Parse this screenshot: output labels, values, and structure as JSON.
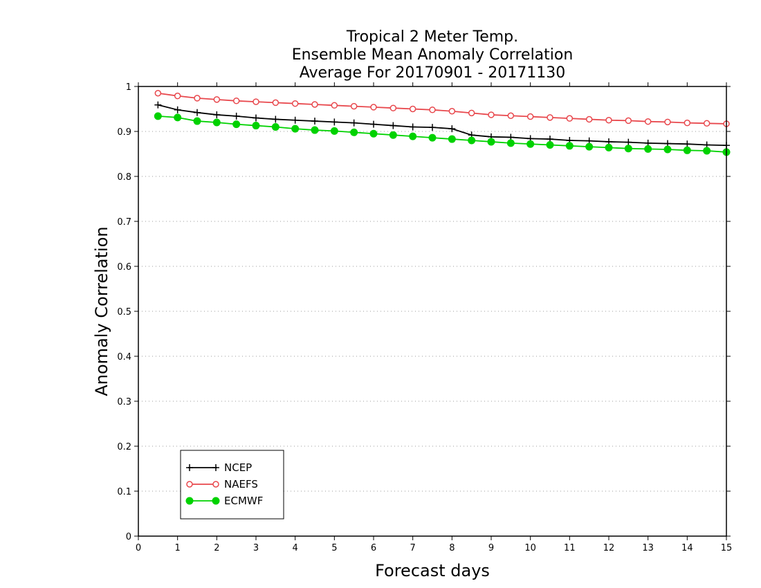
{
  "chart_data": {
    "type": "line",
    "title_lines": [
      "Tropical 2 Meter Temp.",
      "Ensemble Mean Anomaly Correlation",
      "Average For 20170901 - 20171130"
    ],
    "xlabel": "Forecast days",
    "ylabel": "Anomaly Correlation",
    "xlim": [
      0,
      15
    ],
    "ylim": [
      0,
      1
    ],
    "x_ticks": [
      "0",
      "1",
      "2",
      "3",
      "4",
      "5",
      "6",
      "7",
      "8",
      "9",
      "10",
      "11",
      "12",
      "13",
      "14",
      "15"
    ],
    "y_ticks": [
      "0",
      "0.1",
      "0.2",
      "0.3",
      "0.4",
      "0.5",
      "0.6",
      "0.7",
      "0.8",
      "0.9",
      "1"
    ],
    "grid": "horizontal dotted",
    "legend_position": "bottom-left",
    "x": [
      0.5,
      1,
      1.5,
      2,
      2.5,
      3,
      3.5,
      4,
      4.5,
      5,
      5.5,
      6,
      6.5,
      7,
      7.5,
      8,
      8.5,
      9,
      9.5,
      10,
      10.5,
      11,
      11.5,
      12,
      12.5,
      13,
      13.5,
      14,
      14.5,
      15
    ],
    "series": [
      {
        "name": "NCEP",
        "color": "#000000",
        "marker": "plus",
        "values": [
          0.959,
          0.948,
          0.942,
          0.937,
          0.934,
          0.93,
          0.927,
          0.925,
          0.923,
          0.921,
          0.919,
          0.916,
          0.913,
          0.91,
          0.909,
          0.906,
          0.892,
          0.888,
          0.887,
          0.884,
          0.883,
          0.88,
          0.879,
          0.877,
          0.876,
          0.874,
          0.873,
          0.872,
          0.87,
          0.869
        ]
      },
      {
        "name": "NAEFS",
        "color": "#e8474c",
        "marker": "open-circle",
        "values": [
          0.985,
          0.979,
          0.974,
          0.971,
          0.968,
          0.966,
          0.964,
          0.962,
          0.96,
          0.958,
          0.956,
          0.954,
          0.952,
          0.95,
          0.948,
          0.945,
          0.941,
          0.937,
          0.935,
          0.933,
          0.931,
          0.929,
          0.927,
          0.925,
          0.924,
          0.922,
          0.921,
          0.919,
          0.918,
          0.917
        ]
      },
      {
        "name": "ECMWF",
        "color": "#00d200",
        "marker": "filled-circle",
        "values": [
          0.934,
          0.931,
          0.923,
          0.92,
          0.916,
          0.913,
          0.91,
          0.906,
          0.903,
          0.901,
          0.898,
          0.895,
          0.892,
          0.889,
          0.886,
          0.883,
          0.88,
          0.877,
          0.874,
          0.872,
          0.87,
          0.868,
          0.866,
          0.864,
          0.862,
          0.861,
          0.86,
          0.858,
          0.857,
          0.854
        ]
      }
    ]
  }
}
